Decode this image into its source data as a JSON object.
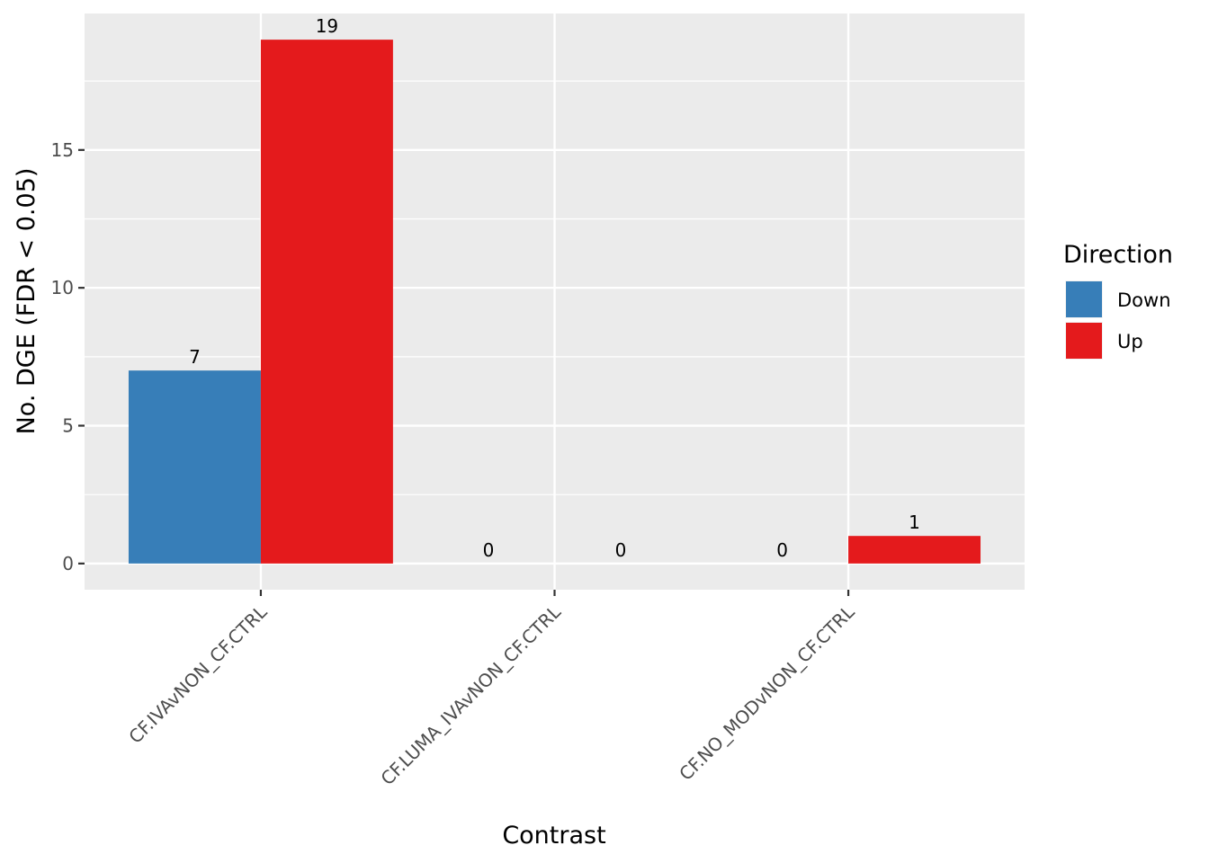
{
  "chart_data": {
    "type": "bar",
    "xlabel": "Contrast",
    "ylabel": "No. DGE (FDR < 0.05)",
    "categories": [
      "CF.IVAvNON_CF.CTRL",
      "CF.LUMA_IVAvNON_CF.CTRL",
      "CF.NO_MODvNON_CF.CTRL"
    ],
    "series": [
      {
        "name": "Down",
        "color": "#377eb8",
        "values": [
          7,
          0,
          0
        ]
      },
      {
        "name": "Up",
        "color": "#e41a1c",
        "values": [
          19,
          0,
          1
        ]
      }
    ],
    "ylim": [
      -0.95,
      19.95
    ],
    "yticks": [
      0,
      5,
      10,
      15
    ],
    "grid": true,
    "legend": {
      "title": "Direction",
      "position": "right"
    },
    "panel_background": "#ebebeb"
  }
}
